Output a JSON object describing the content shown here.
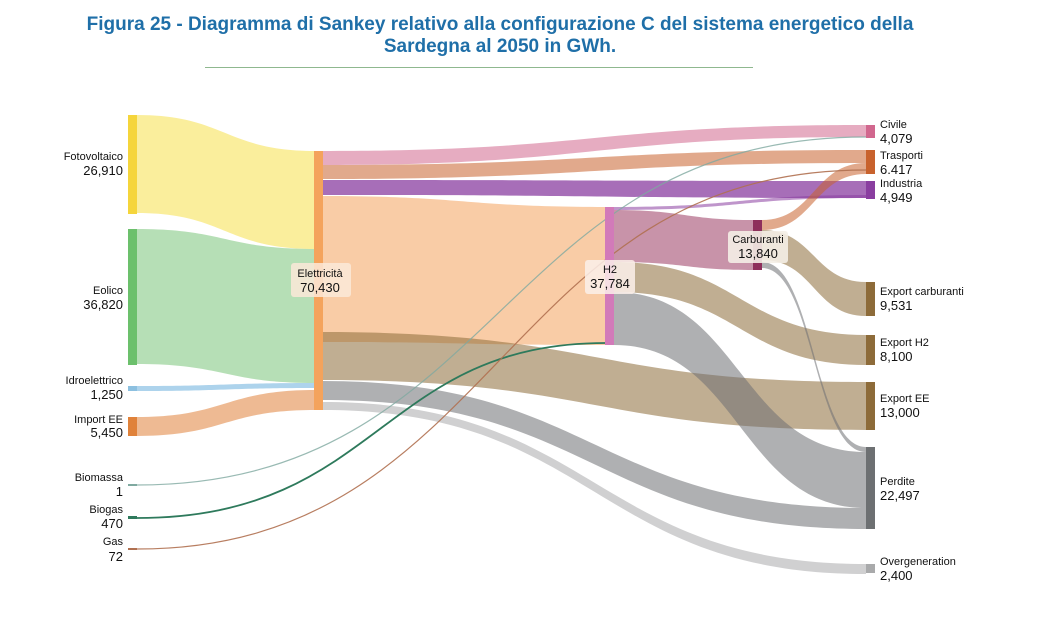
{
  "title_line1": "Figura 25 - Diagramma di Sankey relativo alla configurazione C del sistema energetico della",
  "title_line2": "Sardegna al 2050 in GWh.",
  "colors": {
    "title": "#1f6fa8",
    "fotovoltaico": "#f5d53b",
    "eolico": "#6cc06c",
    "idroelettrico": "#8cc0e0",
    "import_ee": "#e0823a",
    "elettricita": "#f4a35c",
    "h2": "#d27ab9",
    "carburanti": "#8e2f5b",
    "civile": "#d1678e",
    "trasporti": "#c8622d",
    "industria": "#8a3ea0",
    "export": "#8d6b39",
    "perdite": "#6d7072",
    "overgeneration": "#a9aaab"
  },
  "nodes": [
    {
      "id": "fotovoltaico",
      "name": "Fotovoltaico",
      "value": "26,910"
    },
    {
      "id": "eolico",
      "name": "Eolico",
      "value": "36,820"
    },
    {
      "id": "idroelettrico",
      "name": "Idroelettrico",
      "value": "1,250"
    },
    {
      "id": "import_ee",
      "name": "Import EE",
      "value": "5,450"
    },
    {
      "id": "biomassa",
      "name": "Biomassa",
      "value": "1"
    },
    {
      "id": "biogas",
      "name": "Biogas",
      "value": "470"
    },
    {
      "id": "gas",
      "name": "Gas",
      "value": "72"
    },
    {
      "id": "elettricita",
      "name": "Elettricità",
      "value": "70,430"
    },
    {
      "id": "h2",
      "name": "H2",
      "value": "37,784"
    },
    {
      "id": "carburanti",
      "name": "Carburanti",
      "value": "13,840"
    },
    {
      "id": "civile",
      "name": "Civile",
      "value": "4,079"
    },
    {
      "id": "trasporti",
      "name": "Trasporti",
      "value": "6.417"
    },
    {
      "id": "industria",
      "name": "Industria",
      "value": "4,949"
    },
    {
      "id": "export_carburanti",
      "name": "Export carburanti",
      "value": "9,531"
    },
    {
      "id": "export_h2",
      "name": "Export H2",
      "value": "8,100"
    },
    {
      "id": "export_ee",
      "name": "Export EE",
      "value": "13,000"
    },
    {
      "id": "perdite",
      "name": "Perdite",
      "value": "22,497"
    },
    {
      "id": "overgeneration",
      "name": "Overgeneration",
      "value": "2,400"
    }
  ]
}
